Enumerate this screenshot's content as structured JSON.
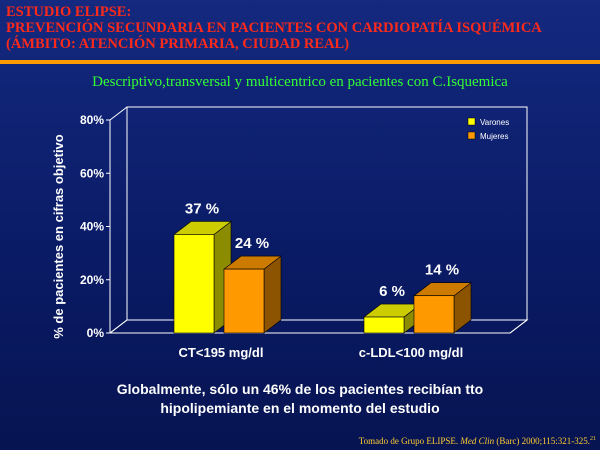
{
  "header": {
    "line1": "ESTUDIO ELIPSE:",
    "line2": "PREVENCIÓN SECUNDARIA EN PACIENTES CON CARDIOPATÍA ISQUÉMICA",
    "line3": "(ÁMBITO: ATENCIÓN PRIMARIA, CIUDAD REAL)"
  },
  "subtitle": "Descriptivo,transversal y multicentrico en pacientes con C.Isquemica",
  "conclusion": {
    "line1": "Globalmente, sólo un 46% de los pacientes recibían tto",
    "line2": "hipolipemiante en el momento del estudio"
  },
  "source": {
    "prefix": "Tomado de Grupo ELIPSE.",
    "journal": "Med Clin",
    "rest": "(Barc) 2000;115:321-325.",
    "ref": "21"
  },
  "colors": {
    "header": "#ff2a1a",
    "subtitle": "#33ff33",
    "varones": "#ffff00",
    "mujeres": "#ff9900"
  },
  "chart_data": {
    "type": "bar",
    "ylabel": "% de pacientes en cifras objetivo",
    "ylim": [
      0,
      80
    ],
    "yticks": [
      "0%",
      "20%",
      "40%",
      "60%",
      "80%"
    ],
    "yticks_values": [
      0,
      20,
      40,
      60,
      80
    ],
    "categories": [
      "CT<195 mg/dl",
      "c-LDL<100 mg/dl"
    ],
    "series": [
      {
        "name": "Varones",
        "values": [
          37,
          6
        ],
        "labels": [
          "37 %",
          "6 %"
        ]
      },
      {
        "name": "Mujeres",
        "values": [
          24,
          14
        ],
        "labels": [
          "24 %",
          "14 %"
        ]
      }
    ],
    "legend_position": "top-right",
    "grid": false
  }
}
